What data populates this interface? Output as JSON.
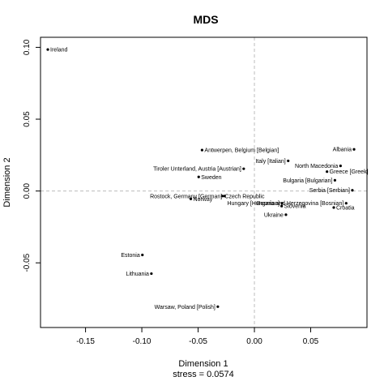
{
  "chart_data": {
    "type": "scatter",
    "title": "MDS",
    "xlabel": "Dimension 1",
    "ylabel": "Dimension 2",
    "subtitle": "stress = 0.0574",
    "xlim": [
      -0.19,
      0.1
    ],
    "ylim": [
      -0.095,
      0.107
    ],
    "xticks": [
      -0.15,
      -0.1,
      -0.05,
      0.0,
      0.05
    ],
    "xtick_labels": [
      "-0.15",
      "-0.10",
      "-0.05",
      "0.00",
      "0.05"
    ],
    "yticks": [
      -0.05,
      0.0,
      0.05,
      0.1
    ],
    "ytick_labels": [
      "-0.05",
      "0.00",
      "0.05",
      "0.10"
    ],
    "reference_lines": {
      "x": 0,
      "y": 0,
      "style": "dashed"
    },
    "grid": false,
    "points": [
      {
        "label": "Ireland",
        "x": -0.1835,
        "y": 0.0985,
        "anchor": "start"
      },
      {
        "label": "Antwerpen, Belgium [Belgian]",
        "x": -0.0465,
        "y": 0.0285,
        "anchor": "start"
      },
      {
        "label": "Albania",
        "x": 0.0885,
        "y": 0.029,
        "anchor": "end"
      },
      {
        "label": "Italy [Italian]",
        "x": 0.03,
        "y": 0.021,
        "anchor": "end"
      },
      {
        "label": "North Macedonia",
        "x": 0.0765,
        "y": 0.0175,
        "anchor": "end"
      },
      {
        "label": "Tiroler Unterland, Austria [Austrian]",
        "x": -0.0095,
        "y": 0.0155,
        "anchor": "end"
      },
      {
        "label": "Greece [Greek]",
        "x": 0.0645,
        "y": 0.0135,
        "anchor": "start"
      },
      {
        "label": "Sweden",
        "x": -0.0495,
        "y": 0.0098,
        "anchor": "start"
      },
      {
        "label": "Bulgaria [Bulgarian]",
        "x": 0.0715,
        "y": 0.0075,
        "anchor": "end"
      },
      {
        "label": "Serbia [Serbian]",
        "x": 0.087,
        "y": 0.0005,
        "anchor": "end"
      },
      {
        "label": "Rostock, Germany [German]",
        "x": -0.0265,
        "y": -0.0035,
        "anchor": "end"
      },
      {
        "label": "Czech Republic",
        "x": -0.0285,
        "y": -0.0035,
        "anchor": "start"
      },
      {
        "label": "Bosnia and Herzegovina [Bosnian]",
        "x": 0.0815,
        "y": -0.0085,
        "anchor": "end"
      },
      {
        "label": "Norway",
        "x": -0.0565,
        "y": -0.0055,
        "anchor": "start"
      },
      {
        "label": "Hungary [Hungarian]",
        "x": 0.0245,
        "y": -0.0085,
        "anchor": "end"
      },
      {
        "label": "Slovenia",
        "x": 0.0242,
        "y": -0.0105,
        "anchor": "start"
      },
      {
        "label": "Croatia",
        "x": 0.0705,
        "y": -0.0115,
        "anchor": "start"
      },
      {
        "label": "Ukraine",
        "x": 0.028,
        "y": -0.0165,
        "anchor": "end"
      },
      {
        "label": "Estonia",
        "x": -0.0995,
        "y": -0.0445,
        "anchor": "end"
      },
      {
        "label": "Lithuania",
        "x": -0.0915,
        "y": -0.0575,
        "anchor": "end"
      },
      {
        "label": "Warsaw, Poland [Polish]",
        "x": -0.0325,
        "y": -0.0805,
        "anchor": "end"
      }
    ]
  }
}
